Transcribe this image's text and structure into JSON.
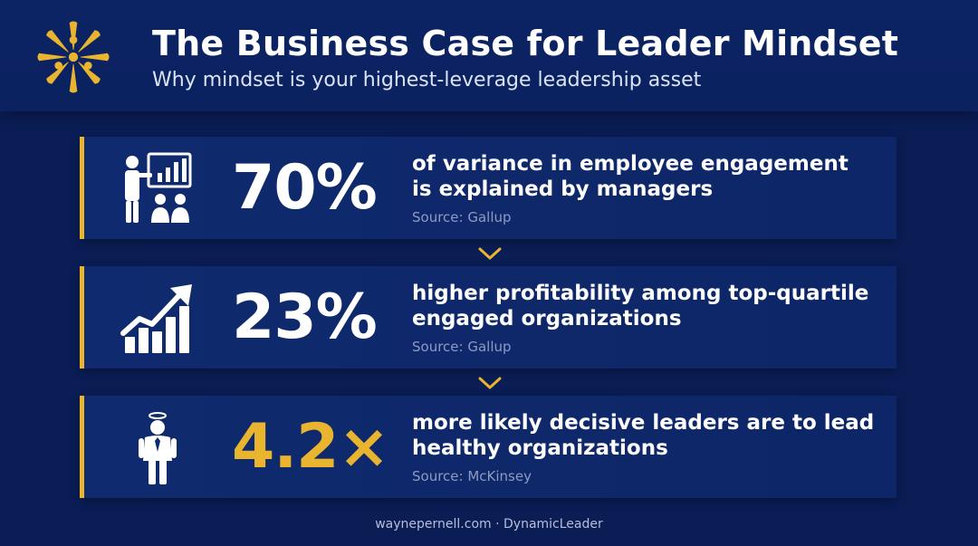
{
  "header": {
    "title": "The Business Case for Leader Mindset",
    "subtitle": "Why mindset is your highest-leverage leadership asset",
    "logo_icon": "starburst-people-logo"
  },
  "colors": {
    "accent": "#e9b52f",
    "background": "#0a1d55",
    "card": "#0f2a6e"
  },
  "stats": [
    {
      "value": "70%",
      "line1": "of variance in employee engagement",
      "line2": "is explained by managers",
      "source": "Source: Gallup",
      "icon": "presenter-audience-icon",
      "value_color": "#ffffff"
    },
    {
      "value": "23%",
      "line1": "higher profitability among top-quartile",
      "line2": "engaged organizations",
      "source": "Source: Gallup",
      "icon": "growth-chart-icon",
      "value_color": "#ffffff"
    },
    {
      "value": "4.2×",
      "line1": "more likely decisive leaders are to lead",
      "line2": "healthy organizations",
      "source": "Source: McKinsey",
      "icon": "leader-halo-icon",
      "value_color": "#e9b52f"
    }
  ],
  "footer": {
    "text": "waynepernell.com · DynamicLeader"
  }
}
